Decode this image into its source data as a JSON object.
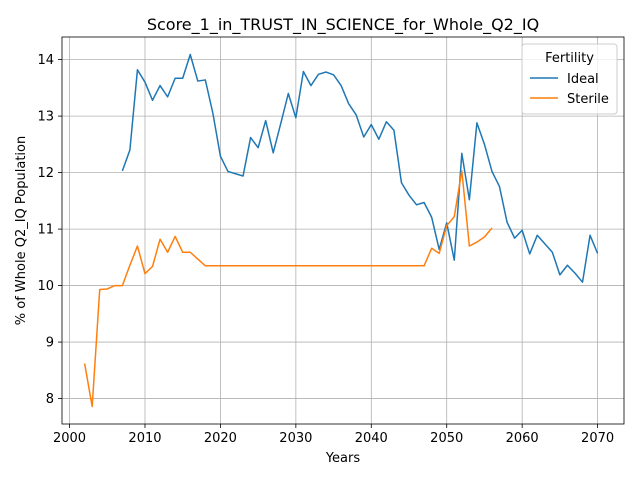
{
  "chart_data": {
    "type": "line",
    "title": "Score_1_in_TRUST_IN_SCIENCE_for_Whole_Q2_IQ",
    "xlabel": "Years",
    "ylabel": "% of Whole Q2_IQ Population",
    "xlim": [
      1999,
      2073.5
    ],
    "ylim": [
      7.55,
      14.4
    ],
    "x_ticks": [
      2000,
      2010,
      2020,
      2030,
      2040,
      2050,
      2060,
      2070
    ],
    "y_ticks": [
      8,
      9,
      10,
      11,
      12,
      13,
      14
    ],
    "grid": true,
    "legend": {
      "title": "Fertility",
      "position": "top-right"
    },
    "series": [
      {
        "name": "Ideal",
        "color": "#1f77b4",
        "x": [
          2007,
          2008,
          2009,
          2010,
          2011,
          2012,
          2013,
          2014,
          2015,
          2016,
          2017,
          2018,
          2019,
          2020,
          2021,
          2022,
          2023,
          2024,
          2025,
          2026,
          2027,
          2028,
          2029,
          2030,
          2031,
          2032,
          2033,
          2034,
          2035,
          2036,
          2037,
          2038,
          2039,
          2040,
          2041,
          2042,
          2043,
          2044,
          2045,
          2046,
          2047,
          2048,
          2049,
          2050,
          2051,
          2052,
          2053,
          2054,
          2055,
          2056,
          2057,
          2058,
          2059,
          2060,
          2061,
          2062,
          2063,
          2064,
          2065,
          2066,
          2067,
          2068,
          2069,
          2070
        ],
        "values": [
          12.03,
          12.4,
          13.82,
          13.6,
          13.28,
          13.54,
          13.34,
          13.67,
          13.67,
          14.09,
          13.62,
          13.64,
          13.05,
          12.29,
          12.02,
          11.98,
          11.94,
          12.62,
          12.44,
          12.92,
          12.35,
          12.87,
          13.4,
          12.97,
          13.79,
          13.54,
          13.74,
          13.78,
          13.73,
          13.54,
          13.22,
          13.02,
          12.63,
          12.85,
          12.59,
          12.9,
          12.75,
          11.82,
          11.6,
          11.43,
          11.47,
          11.21,
          10.64,
          11.11,
          10.45,
          12.34,
          11.52,
          12.88,
          12.5,
          12.02,
          11.75,
          11.12,
          10.84,
          10.98,
          10.56,
          10.89,
          10.74,
          10.59,
          10.19,
          10.36,
          10.22,
          10.06,
          10.89,
          10.57
        ]
      },
      {
        "name": "Sterile",
        "color": "#ff7f0e",
        "x": [
          2002,
          2003,
          2004,
          2005,
          2006,
          2007,
          2008,
          2009,
          2010,
          2011,
          2012,
          2013,
          2014,
          2015,
          2016,
          2017,
          2018,
          2019,
          2020,
          2021,
          2022,
          2023,
          2024,
          2025,
          2026,
          2027,
          2028,
          2029,
          2030,
          2031,
          2032,
          2033,
          2034,
          2035,
          2036,
          2037,
          2038,
          2039,
          2040,
          2041,
          2042,
          2043,
          2044,
          2045,
          2046,
          2047,
          2048,
          2049,
          2050,
          2051,
          2052,
          2053,
          2054,
          2055,
          2056
        ],
        "values": [
          8.62,
          7.86,
          9.93,
          9.94,
          10.0,
          10.0,
          10.36,
          10.7,
          10.21,
          10.34,
          10.82,
          10.59,
          10.87,
          10.59,
          10.59,
          10.47,
          10.35,
          10.35,
          10.35,
          10.35,
          10.35,
          10.35,
          10.35,
          10.35,
          10.35,
          10.35,
          10.35,
          10.35,
          10.35,
          10.35,
          10.35,
          10.35,
          10.35,
          10.35,
          10.35,
          10.35,
          10.35,
          10.35,
          10.35,
          10.35,
          10.35,
          10.35,
          10.35,
          10.35,
          10.35,
          10.35,
          10.66,
          10.57,
          11.06,
          11.22,
          12.03,
          10.7,
          10.77,
          10.86,
          11.02
        ]
      }
    ]
  }
}
